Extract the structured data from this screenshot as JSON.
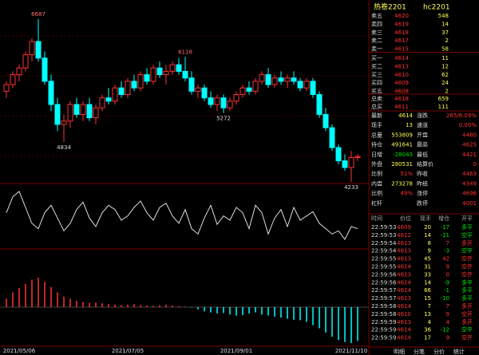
{
  "chart": {
    "annotations": [
      "6687",
      "4834",
      "6118",
      "5272",
      "4233"
    ],
    "candles": [
      [
        5600,
        5750,
        5500,
        5700
      ],
      [
        5700,
        5900,
        5650,
        5850
      ],
      [
        5850,
        6000,
        5750,
        5950
      ],
      [
        5950,
        6200,
        5900,
        6150
      ],
      [
        6150,
        6400,
        6050,
        6350
      ],
      [
        6350,
        6687,
        6050,
        6100
      ],
      [
        6100,
        6200,
        5700,
        5750
      ],
      [
        5750,
        5850,
        5300,
        5400
      ],
      [
        5400,
        5500,
        5000,
        5100
      ],
      [
        5100,
        5250,
        4834,
        5150
      ],
      [
        5150,
        5450,
        5050,
        5400
      ],
      [
        5400,
        5500,
        5200,
        5250
      ],
      [
        5250,
        5450,
        5150,
        5400
      ],
      [
        5400,
        5500,
        5150,
        5200
      ],
      [
        5200,
        5400,
        5100,
        5350
      ],
      [
        5350,
        5550,
        5300,
        5500
      ],
      [
        5500,
        5650,
        5400,
        5450
      ],
      [
        5450,
        5700,
        5400,
        5650
      ],
      [
        5650,
        5750,
        5500,
        5550
      ],
      [
        5550,
        5800,
        5500,
        5750
      ],
      [
        5750,
        5850,
        5600,
        5650
      ],
      [
        5650,
        5900,
        5600,
        5850
      ],
      [
        5850,
        5950,
        5700,
        5750
      ],
      [
        5750,
        6000,
        5700,
        5950
      ],
      [
        5950,
        6050,
        5800,
        5850
      ],
      [
        5850,
        6000,
        5700,
        5900
      ],
      [
        5900,
        6050,
        5850,
        6000
      ],
      [
        6000,
        6100,
        5850,
        5900
      ],
      [
        5900,
        6118,
        5750,
        5800
      ],
      [
        5800,
        5900,
        5550,
        5600
      ],
      [
        5600,
        5700,
        5500,
        5650
      ],
      [
        5650,
        5700,
        5450,
        5500
      ],
      [
        5500,
        5600,
        5350,
        5400
      ],
      [
        5400,
        5550,
        5300,
        5500
      ],
      [
        5500,
        5550,
        5272,
        5350
      ],
      [
        5350,
        5500,
        5300,
        5450
      ],
      [
        5450,
        5600,
        5400,
        5550
      ],
      [
        5550,
        5700,
        5500,
        5650
      ],
      [
        5650,
        5750,
        5550,
        5600
      ],
      [
        5600,
        5800,
        5550,
        5750
      ],
      [
        5750,
        5900,
        5700,
        5850
      ],
      [
        5850,
        5950,
        5650,
        5700
      ],
      [
        5700,
        5850,
        5650,
        5800
      ],
      [
        5800,
        5900,
        5700,
        5750
      ],
      [
        5750,
        5850,
        5650,
        5800
      ],
      [
        5800,
        5900,
        5700,
        5750
      ],
      [
        5750,
        5800,
        5600,
        5650
      ],
      [
        5650,
        5800,
        5600,
        5750
      ],
      [
        5750,
        5800,
        5500,
        5550
      ],
      [
        5550,
        5600,
        5200,
        5250
      ],
      [
        5250,
        5350,
        5000,
        5050
      ],
      [
        5050,
        5100,
        4700,
        4750
      ],
      [
        4750,
        4800,
        4500,
        4550
      ],
      [
        4550,
        4650,
        4400,
        4450
      ],
      [
        4450,
        4700,
        4233,
        4600
      ],
      [
        4600,
        4650,
        4550,
        4614
      ]
    ],
    "categories": [
      null,
      null,
      "2021/05/06",
      null,
      null,
      null,
      null,
      null,
      null,
      null,
      null,
      null,
      null,
      null,
      null,
      null,
      null,
      null,
      null,
      "2021/07/05",
      null,
      null,
      null,
      null,
      null,
      null,
      null,
      null,
      null,
      null,
      null,
      null,
      null,
      null,
      null,
      null,
      "2021/09/01",
      null,
      null,
      null,
      null,
      null,
      null,
      null,
      null,
      null,
      null,
      null,
      null,
      null,
      null,
      null,
      null,
      null,
      null,
      "2021/11/10"
    ],
    "oscillator": [
      55,
      70,
      75,
      60,
      45,
      40,
      55,
      62,
      50,
      38,
      45,
      58,
      65,
      50,
      42,
      55,
      62,
      58,
      48,
      52,
      60,
      66,
      55,
      48,
      60,
      64,
      52,
      45,
      58,
      40,
      35,
      50,
      62,
      44,
      52,
      48,
      60,
      55,
      40,
      62,
      55,
      35,
      50,
      58,
      42,
      60,
      48,
      52,
      56,
      45,
      40,
      35,
      38,
      30,
      42,
      40
    ],
    "macd": [
      40,
      70,
      90,
      110,
      130,
      140,
      120,
      95,
      70,
      50,
      40,
      30,
      25,
      20,
      22,
      18,
      15,
      12,
      10,
      12,
      14,
      10,
      8,
      6,
      9,
      12,
      8,
      5,
      3,
      -2,
      -10,
      -20,
      -25,
      -30,
      -28,
      -35,
      -40,
      -38,
      -30,
      -25,
      -35,
      -40,
      -45,
      -50,
      -55,
      -60,
      -62,
      -70,
      -85,
      -100,
      -120,
      -140,
      -155,
      -165,
      -170,
      -160
    ]
  },
  "panel": {
    "title": "热卷2201",
    "code": "hc2201",
    "order_book": [
      [
        "卖五",
        4620,
        548
      ],
      [
        "卖四",
        4619,
        14
      ],
      [
        "卖三",
        4618,
        37
      ],
      [
        "卖二",
        4617,
        2
      ],
      [
        "卖一",
        4615,
        58
      ],
      [
        "买一",
        4614,
        11
      ],
      [
        "买二",
        4613,
        12
      ],
      [
        "买三",
        4610,
        62
      ],
      [
        "买四",
        4609,
        24
      ],
      [
        "买五",
        4608,
        2
      ]
    ],
    "totals": [
      [
        "总卖",
        4618,
        659
      ],
      [
        "总买",
        4611,
        111
      ]
    ],
    "stats": [
      [
        "最新",
        4614,
        "涨跌",
        "265/6.09%"
      ],
      [
        "现手",
        13,
        "速涨",
        "0.00%"
      ],
      [
        "总量",
        553809,
        "开盘",
        4480
      ],
      [
        "持仓",
        491641,
        "最高",
        4625
      ],
      [
        "日增",
        -28043,
        "最低",
        4421
      ],
      [
        "外盘",
        280531,
        "结算价",
        0
      ],
      [
        "比例",
        "51%",
        "昨收",
        4463
      ],
      [
        "内盘",
        273278,
        "昨结",
        4349
      ],
      [
        "比例",
        "49%",
        "涨停",
        4696
      ],
      [
        "杠杆",
        null,
        "跌停",
        4001
      ]
    ],
    "tick_header": [
      "时间",
      "价位",
      "现手",
      "增仓",
      "开平"
    ],
    "ticks": [
      [
        "22:59:53",
        4609,
        20,
        -17,
        "多平"
      ],
      [
        "22:59:53",
        4612,
        14,
        -11,
        "空平"
      ],
      [
        "22:59:54",
        4613,
        8,
        7,
        "多开"
      ],
      [
        "22:59:54",
        4613,
        9,
        -3,
        "空平"
      ],
      [
        "22:59:55",
        4613,
        45,
        42,
        "空开"
      ],
      [
        "22:59:55",
        4614,
        31,
        9,
        "空开"
      ],
      [
        "22:59:56",
        4613,
        33,
        0,
        "空开"
      ],
      [
        "22:59:56",
        4614,
        14,
        -9,
        "多平"
      ],
      [
        "22:59:57",
        4614,
        66,
        -1,
        "多平"
      ],
      [
        "22:59:57",
        4613,
        15,
        -10,
        "多平"
      ],
      [
        "22:59:58",
        4614,
        7,
        7,
        "多开"
      ],
      [
        "22:59:58",
        4610,
        13,
        9,
        "空开"
      ],
      [
        "22:59:59",
        4613,
        4,
        4,
        "多开"
      ],
      [
        "22:59:59",
        4614,
        36,
        -12,
        "空平"
      ],
      [
        "22:59:59",
        4614,
        17,
        9,
        "空开"
      ]
    ],
    "tabs": [
      "明细",
      "分笔",
      "分价",
      "统计"
    ]
  }
}
